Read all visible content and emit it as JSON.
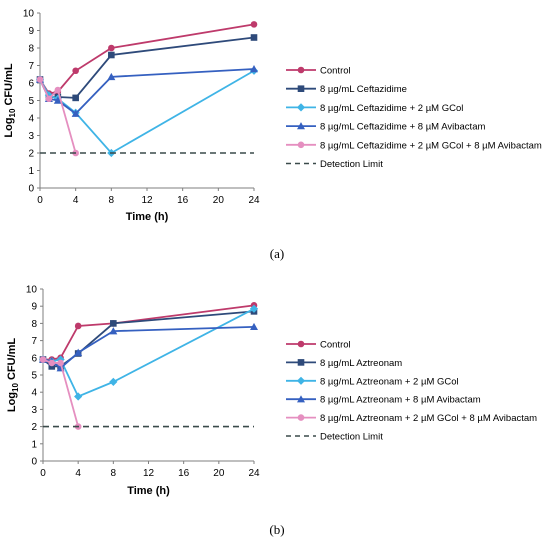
{
  "chart_data": [
    {
      "type": "line",
      "panel_label": "(a)",
      "xlabel": "Time (h)",
      "ylabel": "Log10 CFU/mL",
      "ylabel_main": "Log",
      "ylabel_sub": "10",
      "ylabel_rest": " CFU/mL",
      "xlim": [
        0,
        24
      ],
      "ylim": [
        0,
        10
      ],
      "xticks": [
        0,
        4,
        8,
        12,
        16,
        20,
        24
      ],
      "yticks": [
        0,
        1,
        2,
        3,
        4,
        5,
        6,
        7,
        8,
        9,
        10
      ],
      "grid": false,
      "legend_position": "right",
      "series": [
        {
          "name": "Control",
          "color": "#be3a6b",
          "marker": "circle",
          "x": [
            0,
            1,
            2,
            4,
            8,
            24
          ],
          "y": [
            6.2,
            5.4,
            5.5,
            6.7,
            8.0,
            9.35
          ]
        },
        {
          "name": "8 µg/mL Ceftazidime",
          "color": "#2e4a7a",
          "marker": "square",
          "x": [
            0,
            1,
            2,
            4,
            8,
            24
          ],
          "y": [
            6.2,
            5.2,
            5.2,
            5.15,
            7.6,
            8.6
          ]
        },
        {
          "name": "8 µg/mL Ceftazidime + 2 µM GCol",
          "color": "#3fb4e6",
          "marker": "diamond",
          "x": [
            0,
            1,
            2,
            4,
            8,
            24
          ],
          "y": [
            6.2,
            5.3,
            5.1,
            4.3,
            2.0,
            6.7
          ]
        },
        {
          "name": "8 µg/mL Ceftazidime + 8 µM Avibactam",
          "color": "#3560c0",
          "marker": "triangle",
          "x": [
            0,
            1,
            2,
            4,
            8,
            24
          ],
          "y": [
            6.2,
            5.1,
            5.0,
            4.25,
            6.35,
            6.8
          ]
        },
        {
          "name": "8 µg/mL Ceftazidime + 2 µM GCol + 8 µM Avibactam",
          "color": "#e58fc0",
          "marker": "circle",
          "x": [
            0,
            1,
            2,
            4
          ],
          "y": [
            6.2,
            5.1,
            5.6,
            2.0
          ]
        },
        {
          "name": "Detection Limit",
          "color": "#3a4a4a",
          "dashed": true,
          "x": [
            0,
            24
          ],
          "y": [
            2,
            2
          ]
        }
      ]
    },
    {
      "type": "line",
      "panel_label": "(b)",
      "xlabel": "Time (h)",
      "ylabel": "Log10 CFU/mL",
      "ylabel_main": "Log",
      "ylabel_sub": "10",
      "ylabel_rest": " CFU/mL",
      "xlim": [
        0,
        24
      ],
      "ylim": [
        0,
        10
      ],
      "xticks": [
        0,
        4,
        8,
        12,
        16,
        20,
        24
      ],
      "yticks": [
        0,
        1,
        2,
        3,
        4,
        5,
        6,
        7,
        8,
        9,
        10
      ],
      "grid": false,
      "legend_position": "right",
      "series": [
        {
          "name": "Control",
          "color": "#be3a6b",
          "marker": "circle",
          "x": [
            0,
            1,
            2,
            4,
            8,
            24
          ],
          "y": [
            5.9,
            5.9,
            6.0,
            7.85,
            8.0,
            9.05
          ]
        },
        {
          "name": "8 µg/mL Aztreonam",
          "color": "#2e4a7a",
          "marker": "square",
          "x": [
            0,
            1,
            2,
            4,
            8,
            24
          ],
          "y": [
            5.9,
            5.5,
            5.5,
            6.25,
            8.0,
            8.7
          ]
        },
        {
          "name": "8 µg/mL Aztreonam + 2 µM GCol",
          "color": "#3fb4e6",
          "marker": "diamond",
          "x": [
            0,
            1,
            2,
            4,
            8,
            24
          ],
          "y": [
            5.9,
            5.8,
            5.9,
            3.75,
            4.6,
            8.85
          ]
        },
        {
          "name": "8 µg/mL Aztreonam + 8 µM Avibactam",
          "color": "#3560c0",
          "marker": "triangle",
          "x": [
            0,
            1,
            2,
            4,
            8,
            24
          ],
          "y": [
            5.9,
            5.8,
            5.4,
            6.3,
            7.55,
            7.8
          ]
        },
        {
          "name": "8 µg/mL Aztreonam + 2 µM GCol + 8 µM Avibactam",
          "color": "#e58fc0",
          "marker": "circle",
          "x": [
            0,
            1,
            2,
            4
          ],
          "y": [
            5.9,
            5.7,
            5.7,
            2.0
          ]
        },
        {
          "name": "Detection Limit",
          "color": "#3a4a4a",
          "dashed": true,
          "x": [
            0,
            24
          ],
          "y": [
            2,
            2
          ]
        }
      ]
    }
  ]
}
